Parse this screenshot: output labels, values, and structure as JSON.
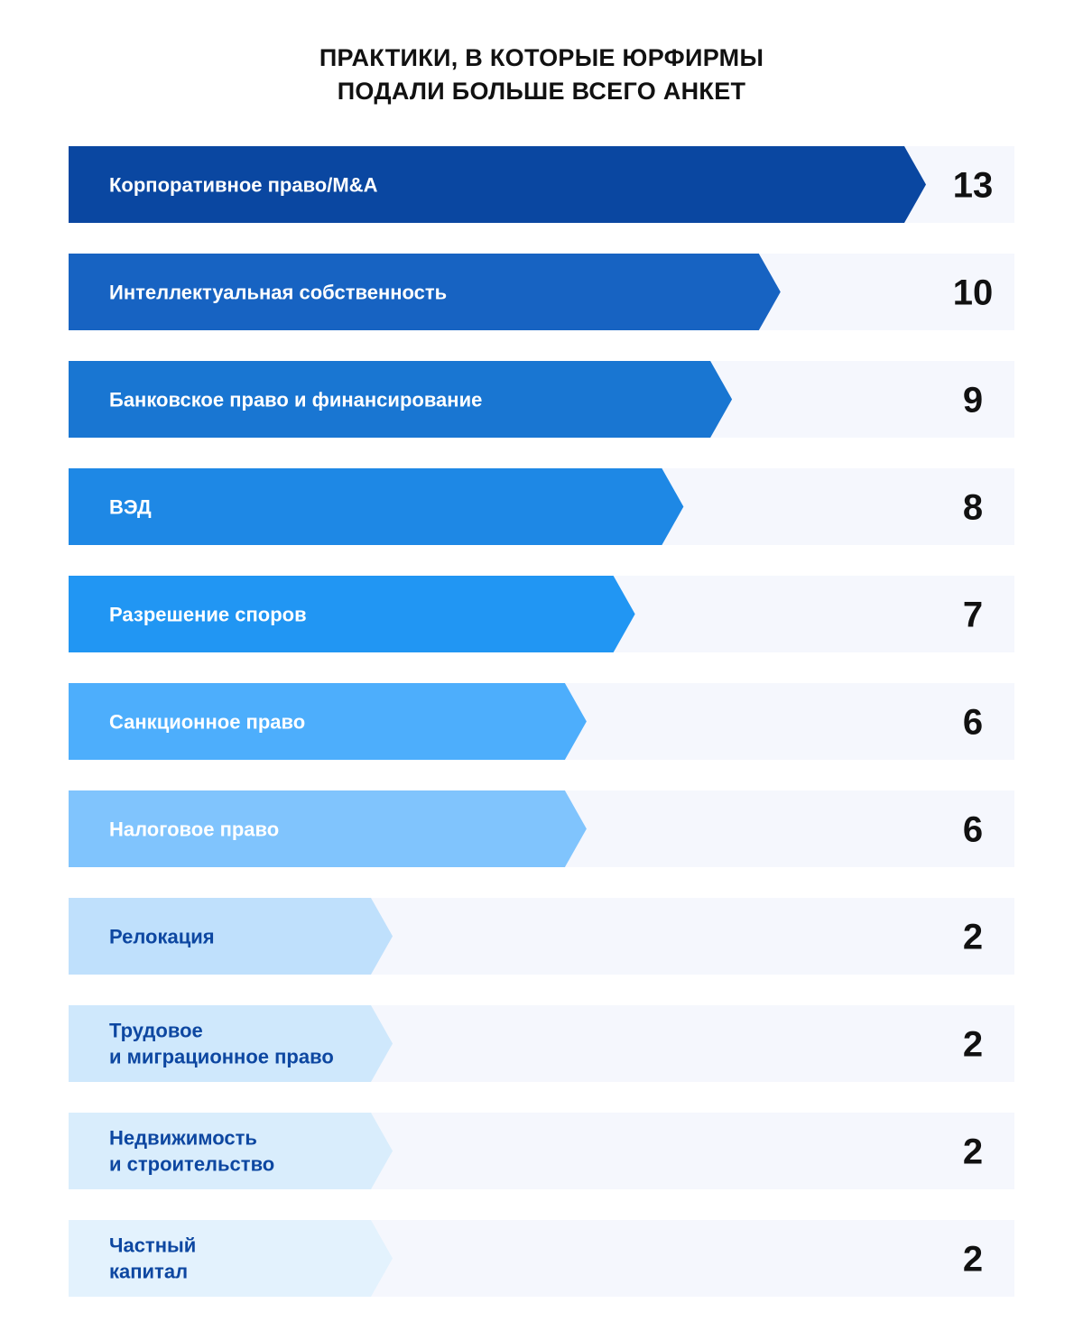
{
  "title_lines": [
    "ПРАКТИКИ, В КОТОРЫЕ ЮРФИРМЫ",
    "ПОДАЛИ БОЛЬШЕ ВСЕГО АНКЕТ"
  ],
  "chart_data": {
    "type": "bar",
    "orientation": "horizontal",
    "title": "ПРАКТИКИ, В КОТОРЫЕ ЮРФИРМЫ ПОДАЛИ БОЛЬШЕ ВСЕГО АНКЕТ",
    "categories": [
      [
        "Корпоративное право/M&A"
      ],
      [
        "Интеллектуальная собственность"
      ],
      [
        "Банковское право и финансирование"
      ],
      [
        "ВЭД"
      ],
      [
        "Разрешение споров"
      ],
      [
        "Санкционное право"
      ],
      [
        "Налоговое право"
      ],
      [
        "Релокация"
      ],
      [
        "Трудовое",
        "и миграционное право"
      ],
      [
        "Недвижимость",
        "и строительство"
      ],
      [
        "Частный",
        "капитал"
      ]
    ],
    "values": [
      13,
      10,
      9,
      8,
      7,
      6,
      6,
      2,
      2,
      2,
      2
    ],
    "xlim": [
      0,
      13
    ],
    "grid": false,
    "colors": [
      "#0a47a1",
      "#1763c2",
      "#1976d2",
      "#1e88e5",
      "#2196f3",
      "#4daefc",
      "#80c4fd",
      "#bfe0fc",
      "#cfe8fc",
      "#d9edfc",
      "#e3f2fd"
    ],
    "label_colors": [
      "#ffffff",
      "#ffffff",
      "#ffffff",
      "#ffffff",
      "#ffffff",
      "#ffffff",
      "#ffffff",
      "#0d47a1",
      "#0d47a1",
      "#0d47a1",
      "#0d47a1"
    ],
    "track_color": "#f5f7fd"
  }
}
